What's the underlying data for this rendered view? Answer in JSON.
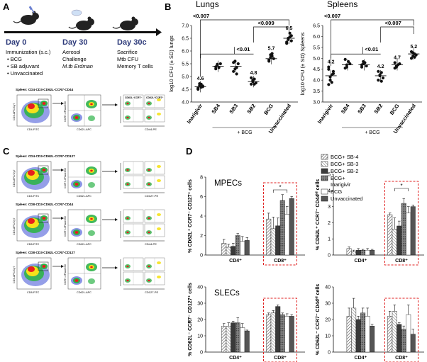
{
  "panel_letters": {
    "a": "A",
    "b": "B",
    "c": "C",
    "d": "D"
  },
  "timeline": {
    "days": [
      "Day 0",
      "Day 30",
      "Day 30c"
    ],
    "col0": [
      "Immunization (s.c.)",
      "• BCG",
      "• SB adjuvant",
      "• Unvaccinated"
    ],
    "col1": [
      "Aerosol",
      "Challenge",
      "M.tb Erdman"
    ],
    "col2": [
      "Sacrifice",
      "Mtb CFU",
      "Memory T cells"
    ]
  },
  "flow": {
    "groups": [
      {
        "title": "Spleen: CD4-CD3-CD62L-CCR7-CD44",
        "x1": "CD4-FITC",
        "y1": "CD3-APC/Cy7",
        "x2": "CD62L-APC",
        "y2": "CCR7-eFluor450",
        "x3": "CD44-PE",
        "quad_tl": "CD62L⁻CCR7⁻",
        "quad_tr": "CD62L⁺CCR7⁺"
      },
      {
        "title": "Spleen: CD4-CD3-CD62L-CCR7-CD127",
        "x1": "CD4-FITC",
        "y1": "CD3-APC/Cy7",
        "x2": "CD62L-APC",
        "y2": "CCR7-eFluor450",
        "x3": "CD127-PE"
      },
      {
        "title": "Spleen: CD8-CD3-CD62L-CCR7-CD44",
        "x1": "CD8-FITC",
        "y1": "CD3-APC/Cy7",
        "x2": "CD62L-APC",
        "y2": "CCR7-eFluor450",
        "x3": "CD44-PE"
      },
      {
        "title": "Spleen: CD8-CD3-CD62L-CCR7-CD127",
        "x1": "CD8-FITC",
        "y1": "CD3-APC/Cy7",
        "x2": "CD62L-APC",
        "y2": "CCR7-eFluor450",
        "x3": "CD127-PE"
      }
    ]
  },
  "colors": {
    "dark": "#111111",
    "mpec_box": "#e02020",
    "hatch": "#555555",
    "bar_dark": "#333333",
    "bar_mid": "#777777",
    "bar_light": "#cccccc",
    "bar_white": "#ffffff",
    "flow_red": "#e81e1e",
    "flow_yellow": "#f5e11a",
    "flow_green": "#2fb34a",
    "flow_blue": "#3d4fd6"
  },
  "chart_data": [
    {
      "type": "scatter",
      "title": "Lungs",
      "ylabel": "log10 CFU (± SD) lungs",
      "ylim": [
        4.0,
        7.0
      ],
      "yticks": [
        "4.0",
        "4.5",
        "5.0",
        "5.5",
        "6.0",
        "6.5",
        "7.0"
      ],
      "categories": [
        "Inarigivir",
        "SB4",
        "SB3",
        "SB2",
        "BCG",
        "Unvaccinated"
      ],
      "means": [
        4.6,
        5.4,
        5.4,
        4.8,
        5.7,
        6.5
      ],
      "mean_labels": [
        "4.6",
        "",
        "",
        "4.8",
        "5.7",
        "6.5"
      ],
      "points": [
        [
          4.55,
          4.65,
          4.7,
          4.6,
          4.5,
          4.72,
          4.58,
          4.63
        ],
        [
          5.3,
          5.45,
          5.35,
          5.5,
          5.38,
          5.48
        ],
        [
          5.2,
          5.6,
          5.35,
          5.5,
          5.55,
          5.3,
          5.1
        ],
        [
          4.7,
          4.85,
          4.9,
          4.75,
          4.95,
          4.8,
          4.7
        ],
        [
          5.6,
          5.75,
          5.8,
          5.7,
          5.65,
          5.85,
          5.9
        ],
        [
          6.3,
          6.45,
          6.55,
          6.6,
          6.35,
          6.5,
          6.7,
          6.4
        ]
      ],
      "group_label": "+ BCG",
      "significance": [
        "<0.007",
        "<0.01",
        "<0.009"
      ]
    },
    {
      "type": "scatter",
      "title": "Spleens",
      "ylabel": "log10 CFU (± SD) Spleens",
      "ylim": [
        3.0,
        6.5
      ],
      "yticks": [
        "3.0",
        "3.5",
        "4.0",
        "4.5",
        "5.0",
        "5.5",
        "6.0",
        "6.5"
      ],
      "categories": [
        "Inarigivir",
        "SB4",
        "SB3",
        "SB2",
        "BCG",
        "Unvaccinated"
      ],
      "means": [
        4.2,
        4.7,
        4.7,
        4.2,
        4.7,
        5.2
      ],
      "mean_labels": [
        "4.2",
        "",
        "",
        "4.2",
        "4.7",
        "5.2"
      ],
      "points": [
        [
          3.8,
          4.0,
          4.25,
          4.4,
          4.5,
          4.15,
          3.9,
          4.3,
          4.6
        ],
        [
          4.55,
          4.7,
          4.85,
          4.75,
          4.95,
          4.6
        ],
        [
          4.6,
          4.75,
          4.8,
          4.65,
          4.7,
          4.85
        ],
        [
          4.0,
          4.2,
          4.35,
          4.1,
          4.4,
          4.25,
          3.95
        ],
        [
          4.55,
          4.65,
          4.7,
          4.75,
          4.8,
          4.6
        ],
        [
          5.0,
          5.1,
          5.2,
          5.15,
          5.3,
          5.25,
          5.05
        ]
      ],
      "group_label": "+ BCG",
      "significance": [
        "<0.007",
        "<0.01",
        "<0.007"
      ]
    },
    {
      "type": "bar",
      "title": "MPECs",
      "ylabel": "% CD62L⁺ CCR7⁻ CD127⁺ cells",
      "ylim": [
        0,
        8
      ],
      "yticks": [
        "0",
        "2",
        "4",
        "6",
        "8"
      ],
      "categories": [
        "CD4⁺",
        "CD8⁺"
      ],
      "series": [
        {
          "name": "BCG+ SB-4",
          "values": [
            1.2,
            3.7
          ],
          "err": [
            0.4,
            0.6
          ]
        },
        {
          "name": "BCG+ SB-3",
          "values": [
            0.8,
            2.7
          ],
          "err": [
            0.3,
            1.2
          ]
        },
        {
          "name": "BCG+ SB-2",
          "values": [
            0.9,
            3.0
          ],
          "err": [
            0.3,
            0.8
          ]
        },
        {
          "name": "BCG+ Inarigivir",
          "values": [
            2.0,
            5.6
          ],
          "err": [
            0.2,
            0.6
          ]
        },
        {
          "name": "BCG",
          "values": [
            1.4,
            4.2
          ],
          "err": [
            0.5,
            0.8
          ]
        },
        {
          "name": "Unvaccinated",
          "values": [
            1.5,
            5.8
          ],
          "err": [
            0.3,
            0.2
          ]
        }
      ],
      "annotation": "*"
    },
    {
      "type": "bar",
      "ylabel": "% CD62L⁺ CCR7⁻ CD44ᴴⁱ cells",
      "ylim": [
        0,
        5
      ],
      "yticks": [
        "0",
        "1",
        "2",
        "3",
        "4",
        "5"
      ],
      "categories": [
        "CD4⁺",
        "CD8⁺"
      ],
      "series": [
        {
          "name": "BCG+ SB-4",
          "values": [
            0.4,
            2.5
          ],
          "err": [
            0.1,
            0.1
          ]
        },
        {
          "name": "BCG+ SB-3",
          "values": [
            0.2,
            1.6
          ],
          "err": [
            0.1,
            0.7
          ]
        },
        {
          "name": "BCG+ SB-2",
          "values": [
            0.3,
            1.8
          ],
          "err": [
            0.1,
            0.3
          ]
        },
        {
          "name": "BCG+ Inarigivir",
          "values": [
            0.3,
            3.2
          ],
          "err": [
            0.05,
            0.3
          ]
        },
        {
          "name": "BCG",
          "values": [
            0.3,
            2.6
          ],
          "err": [
            0.1,
            0.4
          ]
        },
        {
          "name": "Unvaccinated",
          "values": [
            0.3,
            3.0
          ],
          "err": [
            0.05,
            0.1
          ]
        }
      ],
      "annotation": "*"
    },
    {
      "type": "bar",
      "title": "SLECs",
      "ylabel": "% CD62L⁻ CCR7⁻ CD127⁺ cells",
      "ylim": [
        0,
        40
      ],
      "yticks": [
        "0",
        "10",
        "20",
        "30",
        "40"
      ],
      "categories": [
        "CD4⁺",
        "CD8⁺"
      ],
      "series": [
        {
          "name": "BCG+ SB-4",
          "values": [
            16,
            23
          ],
          "err": [
            1.5,
            1.0
          ]
        },
        {
          "name": "BCG+ SB-3",
          "values": [
            16,
            24
          ],
          "err": [
            2.0,
            1.5
          ]
        },
        {
          "name": "BCG+ SB-2",
          "values": [
            18,
            28
          ],
          "err": [
            1.0,
            1.0
          ]
        },
        {
          "name": "BCG+ Inarigivir",
          "values": [
            18,
            23
          ],
          "err": [
            3.0,
            1.0
          ]
        },
        {
          "name": "BCG",
          "values": [
            15,
            22
          ],
          "err": [
            2.5,
            1.5
          ]
        },
        {
          "name": "Unvaccinated",
          "values": [
            13,
            22
          ],
          "err": [
            0.5,
            1.0
          ]
        }
      ]
    },
    {
      "type": "bar",
      "ylabel": "% CD62L⁻ CCR7⁻ CD44ᴴⁱ cells",
      "ylim": [
        0,
        40
      ],
      "yticks": [
        "0",
        "10",
        "20",
        "30",
        "40"
      ],
      "categories": [
        "CD4⁺",
        "CD8⁺"
      ],
      "series": [
        {
          "name": "BCG+ SB-4",
          "values": [
            22,
            22
          ],
          "err": [
            5,
            3
          ]
        },
        {
          "name": "BCG+ SB-3",
          "values": [
            27,
            25
          ],
          "err": [
            6,
            4
          ]
        },
        {
          "name": "BCG+ SB-2",
          "values": [
            20,
            17
          ],
          "err": [
            2,
            1
          ]
        },
        {
          "name": "BCG+ Inarigivir",
          "values": [
            24,
            14
          ],
          "err": [
            3,
            2
          ]
        },
        {
          "name": "BCG",
          "values": [
            22,
            23
          ],
          "err": [
            5,
            6
          ]
        },
        {
          "name": "Unvaccinated",
          "values": [
            16,
            11
          ],
          "err": [
            1,
            3
          ]
        }
      ]
    }
  ]
}
